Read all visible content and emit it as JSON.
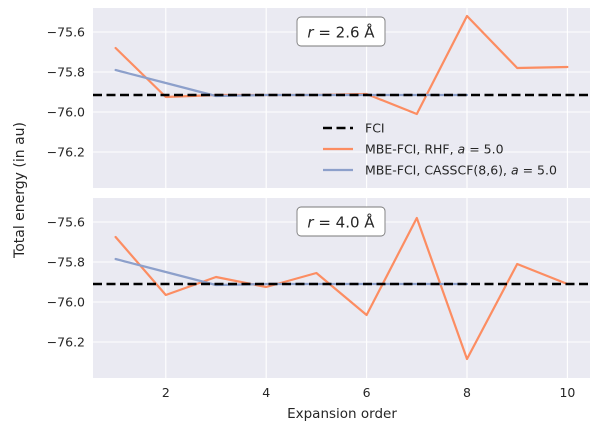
{
  "figure": {
    "ylabel": "Total energy (in au)",
    "xlabel": "Expansion order"
  },
  "legend": {
    "placement": "lower-right of top panel",
    "entries": [
      {
        "label": "FCI",
        "series": "FCI"
      },
      {
        "label": "MBE-FCI, RHF, a = 5.0",
        "series": "RHF"
      },
      {
        "label": "MBE-FCI, CASSCF(8,6), a = 5.0",
        "series": "CASSCF"
      }
    ]
  },
  "colors": {
    "panel_bg": "#EAEAF2",
    "grid": "#FFFFFF",
    "fci": "#000000",
    "rhf": "#FC8D62",
    "casscf": "#8DA0CB",
    "text": "#262626"
  },
  "chart_data": [
    {
      "type": "line",
      "annotation": "r = 2.6 Å",
      "xlim": [
        0.55,
        10.45
      ],
      "ylim": [
        -76.38,
        -75.48
      ],
      "xticks": [
        2,
        4,
        6,
        8,
        10
      ],
      "yticks": [
        -75.6,
        -75.8,
        -76.0,
        -76.2
      ],
      "ytick_labels": [
        "−75.6",
        "−75.8",
        "−76.0",
        "−76.2"
      ],
      "grid": true,
      "series": [
        {
          "name": "FCI",
          "style": "dashed",
          "hline": -75.915
        },
        {
          "name": "MBE-FCI, RHF, a = 5.0",
          "x": [
            1,
            2,
            3,
            4,
            5,
            6,
            7,
            8,
            9,
            10
          ],
          "y": [
            -75.68,
            -75.925,
            -75.915,
            -75.915,
            -75.915,
            -75.91,
            -76.01,
            -75.52,
            -75.78,
            -75.775
          ]
        },
        {
          "name": "MBE-FCI, CASSCF(8,6), a = 5.0",
          "x": [
            1,
            2,
            3,
            4,
            5,
            6,
            7,
            8
          ],
          "y": [
            -75.79,
            -75.855,
            -75.92,
            -75.915,
            -75.915,
            -75.915,
            -75.915,
            -75.915
          ]
        }
      ]
    },
    {
      "type": "line",
      "annotation": "r = 4.0 Å",
      "xlim": [
        0.55,
        10.45
      ],
      "ylim": [
        -76.38,
        -75.48
      ],
      "xticks": [
        2,
        4,
        6,
        8,
        10
      ],
      "xtick_labels": [
        "2",
        "4",
        "6",
        "8",
        "10"
      ],
      "yticks": [
        -75.6,
        -75.8,
        -76.0,
        -76.2
      ],
      "ytick_labels": [
        "−75.6",
        "−75.8",
        "−76.0",
        "−76.2"
      ],
      "grid": true,
      "series": [
        {
          "name": "FCI",
          "style": "dashed",
          "hline": -75.91
        },
        {
          "name": "MBE-FCI, RHF, a = 5.0",
          "x": [
            1,
            2,
            3,
            4,
            5,
            6,
            7,
            8,
            9,
            10
          ],
          "y": [
            -75.675,
            -75.965,
            -75.875,
            -75.925,
            -75.855,
            -76.065,
            -75.58,
            -76.285,
            -75.81,
            -75.91
          ]
        },
        {
          "name": "MBE-FCI, CASSCF(8,6), a = 5.0",
          "x": [
            1,
            2,
            3,
            4,
            5,
            6,
            7,
            8
          ],
          "y": [
            -75.785,
            -75.85,
            -75.915,
            -75.91,
            -75.91,
            -75.91,
            -75.91,
            -75.91
          ]
        }
      ]
    }
  ]
}
